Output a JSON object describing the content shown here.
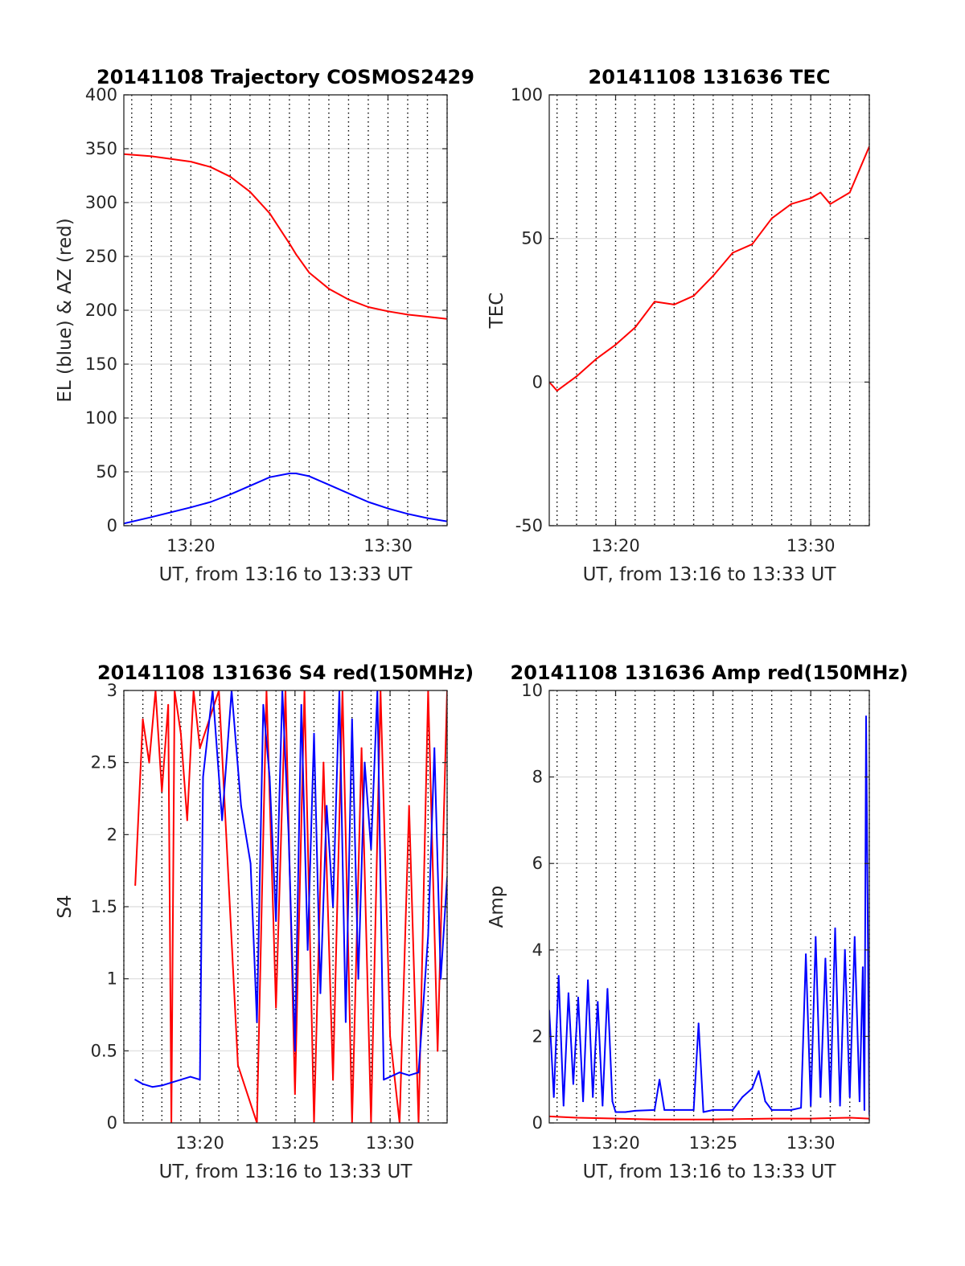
{
  "figure": {
    "date": "20141108",
    "pass_id": "131636"
  },
  "chart_data": [
    {
      "id": "trajectory",
      "type": "line",
      "title": "20141108 Trajectory COSMOS2429",
      "xlabel": "UT, from 13:16 to 13:33 UT",
      "ylabel": "EL (blue) & AZ (red)",
      "xlim": [
        "13:16:36",
        "13:33:00"
      ],
      "ylim": [
        0,
        400
      ],
      "xticks": [
        "13:20",
        "13:30"
      ],
      "yticks": [
        0,
        50,
        100,
        150,
        200,
        250,
        300,
        350,
        400
      ],
      "grid": true,
      "x": [
        "13:16:36",
        "13:18:00",
        "13:20:00",
        "13:21:00",
        "13:22:00",
        "13:23:00",
        "13:24:00",
        "13:25:00",
        "13:25:20",
        "13:26:00",
        "13:27:00",
        "13:28:00",
        "13:29:00",
        "13:30:00",
        "13:31:00",
        "13:32:00",
        "13:33:00"
      ],
      "series": [
        {
          "name": "EL",
          "color": "#0000ff",
          "values": [
            2,
            8,
            17,
            22,
            29,
            37,
            45,
            48.5,
            48.5,
            46,
            38,
            30,
            22,
            16,
            11,
            7,
            4
          ]
        },
        {
          "name": "AZ",
          "color": "#ff0000",
          "values": [
            345,
            343,
            338,
            333,
            324,
            310,
            290,
            262,
            252,
            235,
            220,
            210,
            203,
            199,
            196,
            194,
            192
          ]
        }
      ]
    },
    {
      "id": "tec",
      "type": "line",
      "title": "20141108 131636 TEC",
      "xlabel": "UT, from 13:16 to 13:33 UT",
      "ylabel": "TEC",
      "xlim": [
        "13:16:36",
        "13:33:00"
      ],
      "ylim": [
        -50,
        100
      ],
      "xticks": [
        "13:20",
        "13:30"
      ],
      "yticks": [
        -50,
        0,
        50,
        100
      ],
      "grid": true,
      "x": [
        "13:16:36",
        "13:17:00",
        "13:18:00",
        "13:19:00",
        "13:20:00",
        "13:21:00",
        "13:22:00",
        "13:23:00",
        "13:24:00",
        "13:25:00",
        "13:26:00",
        "13:27:00",
        "13:28:00",
        "13:29:00",
        "13:30:00",
        "13:30:30",
        "13:31:00",
        "13:32:00",
        "13:33:00"
      ],
      "series": [
        {
          "name": "TEC",
          "color": "#ff0000",
          "values": [
            0,
            -3,
            2,
            8,
            13,
            19,
            28,
            27,
            30,
            37,
            45,
            48,
            57,
            62,
            64,
            66,
            62,
            66,
            82
          ]
        }
      ]
    },
    {
      "id": "s4",
      "type": "line",
      "title": "20141108 131636 S4 red(150MHz)",
      "xlabel": "UT, from 13:16 to 13:33 UT",
      "ylabel": "S4",
      "xlim": [
        "13:16:00",
        "13:33:00"
      ],
      "ylim": [
        0,
        3
      ],
      "xticks": [
        "13:20",
        "13:25",
        "13:30"
      ],
      "yticks": [
        0,
        0.5,
        1,
        1.5,
        2,
        2.5,
        3
      ],
      "grid": true,
      "series": [
        {
          "name": "S4 red",
          "color": "#ff0000",
          "x": [
            "13:16:36",
            "13:17:00",
            "13:17:20",
            "13:17:40",
            "13:18:00",
            "13:18:20",
            "13:18:30",
            "13:18:40",
            "13:19:00",
            "13:19:20",
            "13:19:40",
            "13:20:00",
            "13:21:00",
            "13:22:00",
            "13:23:00",
            "13:23:30",
            "13:24:00",
            "13:24:30",
            "13:25:00",
            "13:25:30",
            "13:26:00",
            "13:26:30",
            "13:27:00",
            "13:27:30",
            "13:28:00",
            "13:28:30",
            "13:29:00",
            "13:29:30",
            "13:30:00",
            "13:30:30",
            "13:31:00",
            "13:31:30",
            "13:32:00",
            "13:32:30",
            "13:33:00"
          ],
          "values": [
            1.65,
            2.8,
            2.5,
            3,
            2.3,
            2.9,
            0,
            3,
            2.7,
            2.1,
            3,
            2.6,
            3,
            0.4,
            0,
            3,
            0.8,
            3,
            0.2,
            3,
            0,
            2.5,
            0.3,
            3,
            0,
            2.6,
            0,
            3,
            0.6,
            0,
            2.2,
            0,
            3,
            0.5,
            3
          ]
        },
        {
          "name": "S4 blue",
          "color": "#0000ff",
          "x": [
            "13:16:36",
            "13:17:00",
            "13:17:30",
            "13:18:00",
            "13:18:30",
            "13:19:00",
            "13:19:30",
            "13:20:00",
            "13:20:10",
            "13:20:40",
            "13:21:10",
            "13:21:40",
            "13:22:10",
            "13:22:40",
            "13:23:00",
            "13:23:20",
            "13:23:40",
            "13:24:00",
            "13:24:20",
            "13:24:40",
            "13:25:00",
            "13:25:20",
            "13:25:40",
            "13:26:00",
            "13:26:20",
            "13:26:40",
            "13:27:00",
            "13:27:20",
            "13:27:40",
            "13:28:00",
            "13:28:20",
            "13:28:40",
            "13:29:00",
            "13:29:20",
            "13:29:40",
            "13:30:00",
            "13:30:30",
            "13:31:00",
            "13:31:30",
            "13:32:00",
            "13:32:20",
            "13:32:40",
            "13:33:00"
          ],
          "values": [
            0.3,
            0.27,
            0.25,
            0.26,
            0.28,
            0.3,
            0.32,
            0.3,
            2.4,
            3,
            2.1,
            3,
            2.2,
            1.8,
            0.7,
            2.9,
            2.4,
            1.4,
            3,
            2.0,
            0.5,
            2.9,
            1.2,
            2.7,
            0.9,
            2.2,
            1.5,
            3,
            0.7,
            2.8,
            1.0,
            2.5,
            1.9,
            3,
            0.3,
            0.32,
            0.35,
            0.33,
            0.35,
            1.3,
            2.6,
            1.0,
            1.7
          ]
        }
      ]
    },
    {
      "id": "amp",
      "type": "line",
      "title": "20141108 131636 Amp red(150MHz)",
      "xlabel": "UT, from 13:16 to 13:33 UT",
      "ylabel": "Amp",
      "xlim": [
        "13:16:36",
        "13:33:00"
      ],
      "ylim": [
        0,
        10
      ],
      "xticks": [
        "13:20",
        "13:25",
        "13:30"
      ],
      "yticks": [
        0,
        2,
        4,
        6,
        8,
        10
      ],
      "grid": true,
      "series": [
        {
          "name": "Amp red",
          "color": "#ff0000",
          "x": [
            "13:16:36",
            "13:18:00",
            "13:20:00",
            "13:22:00",
            "13:25:00",
            "13:28:00",
            "13:30:00",
            "13:32:00",
            "13:33:00"
          ],
          "values": [
            0.15,
            0.12,
            0.1,
            0.08,
            0.08,
            0.1,
            0.1,
            0.12,
            0.1
          ]
        },
        {
          "name": "Amp blue",
          "color": "#0000ff",
          "x": [
            "13:16:36",
            "13:16:50",
            "13:17:05",
            "13:17:20",
            "13:17:35",
            "13:17:50",
            "13:18:05",
            "13:18:20",
            "13:18:35",
            "13:18:50",
            "13:19:05",
            "13:19:20",
            "13:19:35",
            "13:19:50",
            "13:20:00",
            "13:20:30",
            "13:21:00",
            "13:22:00",
            "13:22:15",
            "13:22:30",
            "13:23:00",
            "13:24:00",
            "13:24:15",
            "13:24:30",
            "13:25:00",
            "13:26:00",
            "13:26:30",
            "13:27:00",
            "13:27:20",
            "13:27:40",
            "13:28:00",
            "13:29:00",
            "13:29:30",
            "13:29:45",
            "13:30:00",
            "13:30:15",
            "13:30:30",
            "13:30:45",
            "13:31:00",
            "13:31:15",
            "13:31:30",
            "13:31:45",
            "13:32:00",
            "13:32:15",
            "13:32:30",
            "13:32:40",
            "13:32:45",
            "13:32:50",
            "13:33:00"
          ],
          "values": [
            2.6,
            0.6,
            3.4,
            0.4,
            3.0,
            0.9,
            2.9,
            0.5,
            3.3,
            0.6,
            2.8,
            0.4,
            3.1,
            0.5,
            0.25,
            0.25,
            0.28,
            0.3,
            1.0,
            0.3,
            0.3,
            0.3,
            2.3,
            0.25,
            0.3,
            0.3,
            0.6,
            0.8,
            1.2,
            0.5,
            0.3,
            0.3,
            0.35,
            3.9,
            0.4,
            4.3,
            0.6,
            3.8,
            0.5,
            4.5,
            0.4,
            4.0,
            0.6,
            4.3,
            0.5,
            3.6,
            0.3,
            9.4,
            0.2
          ]
        }
      ]
    }
  ]
}
